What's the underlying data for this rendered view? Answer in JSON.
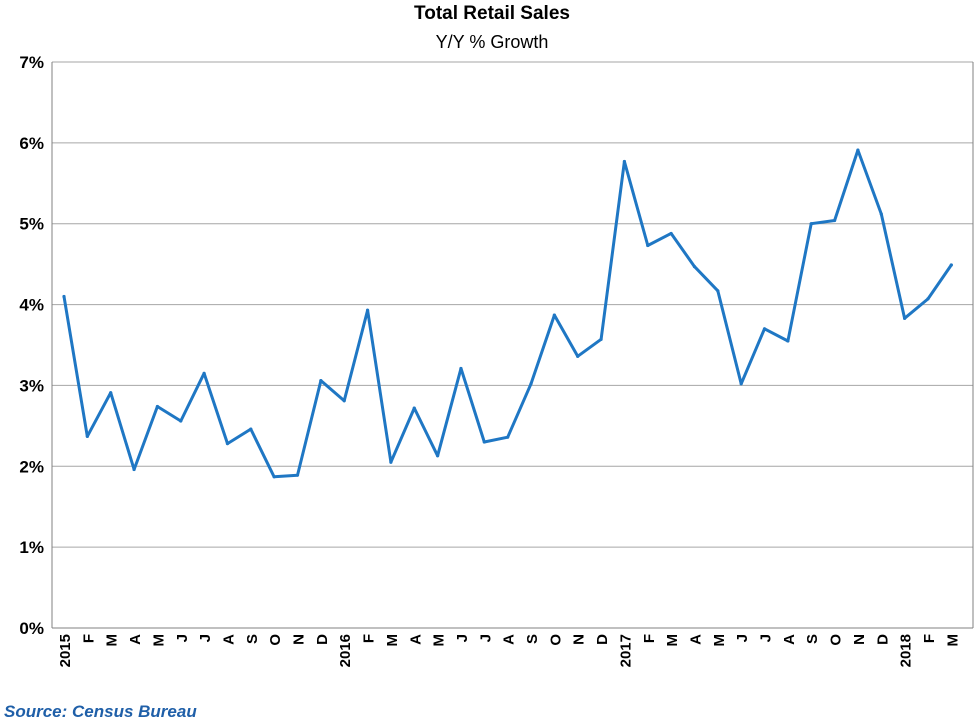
{
  "chart_data": {
    "type": "line",
    "title": "Total Retail Sales",
    "subtitle": "Y/Y % Growth",
    "source": "Source: Census Bureau",
    "categories": [
      "2015",
      "F",
      "M",
      "A",
      "M",
      "J",
      "J",
      "A",
      "S",
      "O",
      "N",
      "D",
      "2016",
      "F",
      "M",
      "A",
      "M",
      "J",
      "J",
      "A",
      "S",
      "O",
      "N",
      "D",
      "2017",
      "F",
      "M",
      "A",
      "M",
      "J",
      "J",
      "A",
      "S",
      "O",
      "N",
      "D",
      "2018",
      "F",
      "M"
    ],
    "series": [
      {
        "color": "#1f77c4",
        "values": [
          4.1,
          2.37,
          2.91,
          1.96,
          2.74,
          2.56,
          3.15,
          2.28,
          2.46,
          1.87,
          1.89,
          3.06,
          2.81,
          3.93,
          2.05,
          2.72,
          2.13,
          3.21,
          2.3,
          2.36,
          3.02,
          3.87,
          3.36,
          3.57,
          5.77,
          4.73,
          4.88,
          4.47,
          4.17,
          3.02,
          3.7,
          3.55,
          5.0,
          5.04,
          5.91,
          5.12,
          3.83,
          4.07,
          4.49
        ]
      }
    ],
    "y_tick_labels": [
      "0%",
      "1%",
      "2%",
      "3%",
      "4%",
      "5%",
      "6%",
      "7%"
    ],
    "ylim": [
      0,
      7
    ],
    "grid": true,
    "legend": "none"
  }
}
